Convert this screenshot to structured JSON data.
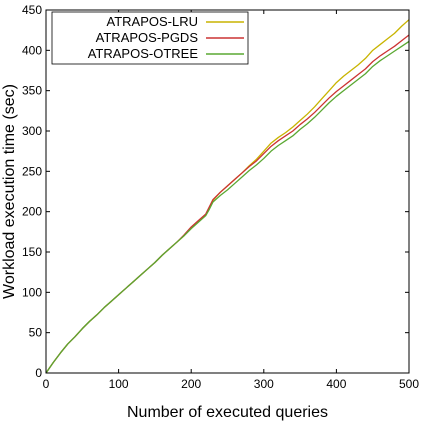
{
  "chart_data": {
    "type": "line",
    "title": "",
    "xlabel": "Number of executed queries",
    "ylabel": "Workload execution time (sec)",
    "xlim": [
      0,
      500
    ],
    "ylim": [
      0,
      450
    ],
    "xticks": [
      0,
      100,
      200,
      300,
      400,
      500
    ],
    "yticks": [
      0,
      50,
      100,
      150,
      200,
      250,
      300,
      350,
      400,
      450
    ],
    "grid": false,
    "legend_position": "top-left",
    "series": [
      {
        "name": "ATRAPOS-LRU",
        "color": "#c8b400",
        "x": [
          0,
          10,
          20,
          30,
          40,
          50,
          60,
          70,
          80,
          90,
          100,
          110,
          120,
          130,
          140,
          150,
          160,
          170,
          180,
          190,
          200,
          210,
          220,
          225,
          230,
          240,
          250,
          260,
          270,
          280,
          290,
          300,
          310,
          320,
          330,
          340,
          350,
          360,
          370,
          380,
          390,
          400,
          410,
          420,
          430,
          440,
          450,
          460,
          470,
          480,
          490,
          500
        ],
        "y": [
          0,
          13,
          25,
          36,
          45,
          55,
          64,
          72,
          81,
          89,
          97,
          105,
          113,
          121,
          129,
          137,
          146,
          154,
          162,
          170,
          180,
          188,
          196,
          204,
          214,
          224,
          232,
          240,
          248,
          257,
          265,
          275,
          285,
          292,
          298,
          305,
          313,
          321,
          330,
          340,
          350,
          360,
          368,
          375,
          382,
          390,
          400,
          407,
          414,
          421,
          430,
          438
        ]
      },
      {
        "name": "ATRAPOS-PGDS",
        "color": "#cc3333",
        "x": [
          0,
          10,
          20,
          30,
          40,
          50,
          60,
          70,
          80,
          90,
          100,
          110,
          120,
          130,
          140,
          150,
          160,
          170,
          180,
          190,
          200,
          210,
          220,
          225,
          230,
          240,
          250,
          260,
          270,
          280,
          290,
          300,
          310,
          320,
          330,
          340,
          350,
          360,
          370,
          380,
          390,
          400,
          410,
          420,
          430,
          440,
          450,
          460,
          470,
          480,
          490,
          500
        ],
        "y": [
          0,
          13,
          25,
          36,
          45,
          55,
          64,
          72,
          81,
          89,
          97,
          105,
          113,
          121,
          129,
          137,
          146,
          154,
          162,
          171,
          181,
          189,
          197,
          206,
          215,
          224,
          232,
          240,
          248,
          256,
          263,
          272,
          281,
          288,
          294,
          300,
          308,
          315,
          323,
          332,
          341,
          349,
          356,
          363,
          370,
          377,
          386,
          393,
          399,
          405,
          412,
          419
        ]
      },
      {
        "name": "ATRAPOS-OTREE",
        "color": "#5aa832",
        "x": [
          0,
          10,
          20,
          30,
          40,
          50,
          60,
          70,
          80,
          90,
          100,
          110,
          120,
          130,
          140,
          150,
          160,
          170,
          180,
          190,
          200,
          210,
          220,
          225,
          230,
          240,
          250,
          260,
          270,
          280,
          290,
          300,
          310,
          320,
          330,
          340,
          350,
          360,
          370,
          380,
          390,
          400,
          410,
          420,
          430,
          440,
          450,
          460,
          470,
          480,
          490,
          500
        ],
        "y": [
          0,
          13,
          25,
          36,
          45,
          55,
          64,
          72,
          81,
          89,
          97,
          105,
          113,
          121,
          129,
          137,
          146,
          154,
          162,
          170,
          179,
          187,
          195,
          203,
          212,
          220,
          227,
          235,
          243,
          251,
          258,
          266,
          275,
          282,
          288,
          294,
          302,
          309,
          317,
          326,
          335,
          343,
          350,
          357,
          364,
          371,
          380,
          387,
          393,
          399,
          405,
          411
        ]
      }
    ]
  }
}
